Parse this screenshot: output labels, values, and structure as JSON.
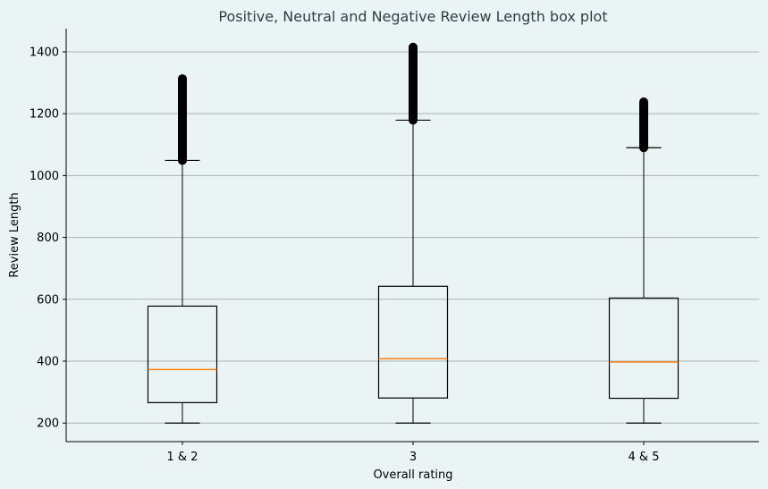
{
  "chart_data": {
    "type": "box",
    "title": "Positive, Neutral and Negative Review Length box plot",
    "xlabel": "Overall rating",
    "ylabel": "Review Length",
    "ylim": [
      140,
      1475
    ],
    "yticks": [
      200,
      400,
      600,
      800,
      1000,
      1200,
      1400
    ],
    "grid": "horizontal",
    "colors": {
      "background": "#eaf4f4",
      "grid": "#a9b1b1",
      "box": "#000000",
      "median": "#ff7f0e",
      "outlier": "#000000"
    },
    "categories": [
      "1 & 2",
      "3",
      "4 & 5"
    ],
    "boxes": [
      {
        "label": "1 & 2",
        "whisker_low": 200,
        "q1": 266,
        "median": 373,
        "q3": 578,
        "whisker_high": 1049,
        "outliers_from": 1049,
        "outliers_to": 1313
      },
      {
        "label": "3",
        "whisker_low": 200,
        "q1": 281,
        "median": 408,
        "q3": 642,
        "whisker_high": 1179,
        "outliers_from": 1179,
        "outliers_to": 1416
      },
      {
        "label": "4 & 5",
        "whisker_low": 200,
        "q1": 280,
        "median": 397,
        "q3": 604,
        "whisker_high": 1090,
        "outliers_from": 1090,
        "outliers_to": 1238
      }
    ]
  }
}
